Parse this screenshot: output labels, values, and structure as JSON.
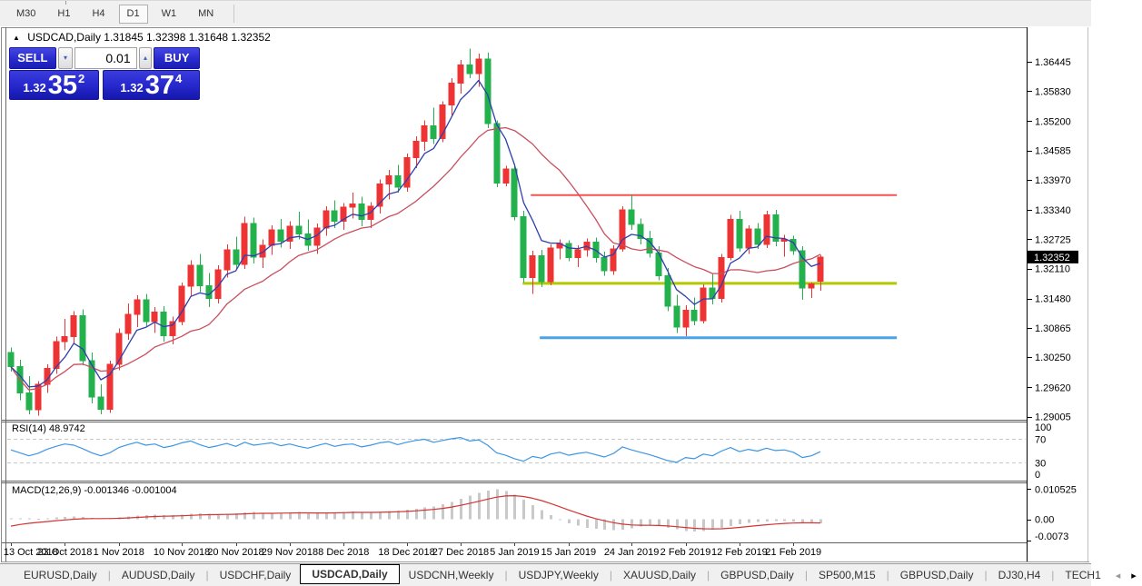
{
  "toolbar": {
    "periods": [
      "M30",
      "H1",
      "H4",
      "D1",
      "W1",
      "MN"
    ],
    "active_period": "D1"
  },
  "window": {
    "title_symbol": "USDCAD,Daily",
    "title_ohlc": "1.31845 1.32398 1.31648 1.32352",
    "collapse_icon": "▲"
  },
  "trade_panel": {
    "sell_label": "SELL",
    "buy_label": "BUY",
    "volume": "0.01",
    "decrease_icon": "▾",
    "increase_icon": "▴",
    "sell_price_prefix": "1.32",
    "sell_price_big": "35",
    "sell_price_sup": "2",
    "buy_price_prefix": "1.32",
    "buy_price_big": "37",
    "buy_price_sup": "4"
  },
  "price_axis": {
    "ticks": [
      "1.36445",
      "1.35830",
      "1.35200",
      "1.34585",
      "1.33970",
      "1.33340",
      "1.32725",
      "1.32110",
      "1.31480",
      "1.30865",
      "1.30250",
      "1.29620",
      "1.29005"
    ],
    "current": "1.32352"
  },
  "indicators": {
    "rsi_label": "RSI(14) 48.9742",
    "rsi_levels": [
      "100",
      "70",
      "30",
      "0"
    ],
    "macd_label": "MACD(12,26,9) -0.001346 -0.001004",
    "macd_ticks": [
      "0.010525",
      "0.00",
      "-0.0073"
    ]
  },
  "tabs": {
    "items": [
      "EURUSD,Daily",
      "AUDUSD,Daily",
      "USDCHF,Daily",
      "USDCAD,Daily",
      "USDCNH,Weekly",
      "USDJPY,Weekly",
      "XAUUSD,Daily",
      "GBPUSD,Daily",
      "SP500,M15",
      "GBPUSD,Daily",
      "DJ30,H4",
      "TECH1"
    ],
    "active_index": 3,
    "scroll_left": "◂",
    "scroll_right": "▸"
  },
  "colors": {
    "bull": "#ed3333",
    "bear": "#22b14c",
    "ma_fast": "#2e3fae",
    "ma_slow": "#c94f60",
    "rsi_line": "#3c96e6",
    "rsi_level_dash": "#c9c9c9",
    "macd_bar": "#c9c9c9",
    "macd_signal": "#d43434",
    "price_tag_bg": "#000000",
    "price_tag_text": "#ffffff",
    "panel_blue": "#2a2cd0"
  },
  "chart_data": {
    "type": "candlestick",
    "title": "USDCAD,Daily",
    "x_labels": [
      "13 Oct 2018",
      "23 Oct 2018",
      "1 Nov 2018",
      "10 Nov 2018",
      "20 Nov 2018",
      "29 Nov 2018",
      "8 Dec 2018",
      "18 Dec 2018",
      "27 Dec 2018",
      "5 Jan 2019",
      "15 Jan 2019",
      "24 Jan 2019",
      "2 Feb 2019",
      "12 Feb 2019",
      "21 Feb 2019"
    ],
    "x_label_indices": [
      0,
      6,
      12,
      19,
      25,
      31,
      37,
      44,
      50,
      56,
      62,
      69,
      75,
      81,
      87
    ],
    "price_range": [
      1.2894,
      1.3715
    ],
    "ma_fast_period": 5,
    "ma_slow_period": 14,
    "candles": [
      [
        1.3035,
        1.3045,
        1.2995,
        1.3005
      ],
      [
        1.3005,
        1.302,
        1.2935,
        1.295
      ],
      [
        1.295,
        1.2985,
        1.2905,
        1.2915
      ],
      [
        1.2915,
        1.2975,
        1.2903,
        1.2968
      ],
      [
        1.2968,
        1.301,
        1.295,
        1.3002
      ],
      [
        1.3002,
        1.3068,
        1.299,
        1.3058
      ],
      [
        1.3058,
        1.3105,
        1.304,
        1.3068
      ],
      [
        1.3068,
        1.3122,
        1.3052,
        1.3112
      ],
      [
        1.3112,
        1.3125,
        1.3008,
        1.3018
      ],
      [
        1.3018,
        1.3035,
        1.2928,
        1.2942
      ],
      [
        1.2942,
        1.2968,
        1.2905,
        1.2916
      ],
      [
        1.2916,
        1.3018,
        1.2908,
        1.301
      ],
      [
        1.301,
        1.3085,
        1.2998,
        1.3075
      ],
      [
        1.3075,
        1.3138,
        1.3062,
        1.3115
      ],
      [
        1.3115,
        1.3155,
        1.3088,
        1.3145
      ],
      [
        1.3145,
        1.3158,
        1.309,
        1.31
      ],
      [
        1.31,
        1.313,
        1.3076,
        1.312
      ],
      [
        1.312,
        1.3132,
        1.3058,
        1.307
      ],
      [
        1.307,
        1.311,
        1.3052,
        1.31
      ],
      [
        1.31,
        1.3182,
        1.3092,
        1.3174
      ],
      [
        1.3174,
        1.3228,
        1.3152,
        1.3218
      ],
      [
        1.3218,
        1.3242,
        1.3162,
        1.3175
      ],
      [
        1.3175,
        1.3202,
        1.313,
        1.3148
      ],
      [
        1.3148,
        1.3218,
        1.3138,
        1.3208
      ],
      [
        1.3208,
        1.3262,
        1.3192,
        1.325
      ],
      [
        1.325,
        1.3278,
        1.3208,
        1.322
      ],
      [
        1.322,
        1.332,
        1.321,
        1.3305
      ],
      [
        1.3305,
        1.3318,
        1.3222,
        1.3235
      ],
      [
        1.3235,
        1.3272,
        1.3212,
        1.326
      ],
      [
        1.326,
        1.3302,
        1.324,
        1.3292
      ],
      [
        1.3292,
        1.3315,
        1.3255,
        1.3268
      ],
      [
        1.3268,
        1.331,
        1.3252,
        1.33
      ],
      [
        1.33,
        1.333,
        1.3272,
        1.3284
      ],
      [
        1.3284,
        1.3314,
        1.3248,
        1.326
      ],
      [
        1.326,
        1.3305,
        1.3242,
        1.3296
      ],
      [
        1.3296,
        1.3342,
        1.328,
        1.3332
      ],
      [
        1.3332,
        1.3354,
        1.3296,
        1.331
      ],
      [
        1.331,
        1.3348,
        1.3292,
        1.334
      ],
      [
        1.334,
        1.337,
        1.3316,
        1.3346
      ],
      [
        1.3346,
        1.3362,
        1.33,
        1.3314
      ],
      [
        1.3314,
        1.335,
        1.3296,
        1.3342
      ],
      [
        1.3342,
        1.3398,
        1.3326,
        1.3388
      ],
      [
        1.3388,
        1.3418,
        1.3356,
        1.3405
      ],
      [
        1.3405,
        1.3428,
        1.337,
        1.3382
      ],
      [
        1.3382,
        1.3452,
        1.3372,
        1.3444
      ],
      [
        1.3444,
        1.3488,
        1.3422,
        1.3478
      ],
      [
        1.3478,
        1.3522,
        1.3458,
        1.351
      ],
      [
        1.351,
        1.3548,
        1.3472,
        1.3484
      ],
      [
        1.3484,
        1.3562,
        1.3476,
        1.3554
      ],
      [
        1.3554,
        1.361,
        1.3532,
        1.36
      ],
      [
        1.36,
        1.3648,
        1.3578,
        1.3638
      ],
      [
        1.3638,
        1.3672,
        1.361,
        1.362
      ],
      [
        1.362,
        1.3662,
        1.3592,
        1.365
      ],
      [
        1.365,
        1.3664,
        1.3505,
        1.3515
      ],
      [
        1.3515,
        1.3522,
        1.3382,
        1.339
      ],
      [
        1.339,
        1.3426,
        1.3384,
        1.342
      ],
      [
        1.342,
        1.343,
        1.3312,
        1.332
      ],
      [
        1.332,
        1.3332,
        1.3182,
        1.3192
      ],
      [
        1.3192,
        1.3248,
        1.3158,
        1.3238
      ],
      [
        1.3238,
        1.325,
        1.3172,
        1.3184
      ],
      [
        1.3184,
        1.3262,
        1.3176,
        1.3254
      ],
      [
        1.3254,
        1.3272,
        1.323,
        1.3264
      ],
      [
        1.3264,
        1.327,
        1.3226,
        1.3234
      ],
      [
        1.3234,
        1.326,
        1.3214,
        1.325
      ],
      [
        1.325,
        1.3274,
        1.3236,
        1.3266
      ],
      [
        1.3266,
        1.3276,
        1.3224,
        1.3234
      ],
      [
        1.3234,
        1.3246,
        1.3196,
        1.3206
      ],
      [
        1.3206,
        1.326,
        1.3198,
        1.3252
      ],
      [
        1.3252,
        1.3342,
        1.3246,
        1.3334
      ],
      [
        1.3334,
        1.3366,
        1.3292,
        1.3304
      ],
      [
        1.3304,
        1.3316,
        1.3262,
        1.3274
      ],
      [
        1.3274,
        1.329,
        1.3234,
        1.3244
      ],
      [
        1.3244,
        1.3258,
        1.3186,
        1.3196
      ],
      [
        1.3196,
        1.3212,
        1.3122,
        1.3132
      ],
      [
        1.3132,
        1.3156,
        1.3076,
        1.3088
      ],
      [
        1.3088,
        1.3134,
        1.3069,
        1.3124
      ],
      [
        1.3124,
        1.315,
        1.3092,
        1.3102
      ],
      [
        1.3102,
        1.3178,
        1.3096,
        1.317
      ],
      [
        1.317,
        1.3202,
        1.3136,
        1.3148
      ],
      [
        1.3148,
        1.3242,
        1.314,
        1.3234
      ],
      [
        1.3234,
        1.3324,
        1.3228,
        1.3314
      ],
      [
        1.3314,
        1.3332,
        1.3246,
        1.3254
      ],
      [
        1.3254,
        1.3302,
        1.3242,
        1.3294
      ],
      [
        1.3294,
        1.3306,
        1.3252,
        1.3262
      ],
      [
        1.3262,
        1.3332,
        1.3254,
        1.3324
      ],
      [
        1.3324,
        1.3334,
        1.3258,
        1.3268
      ],
      [
        1.3268,
        1.3282,
        1.3236,
        1.3272
      ],
      [
        1.3272,
        1.328,
        1.324,
        1.3248
      ],
      [
        1.3248,
        1.3258,
        1.3145,
        1.317
      ],
      [
        1.317,
        1.3182,
        1.3149,
        1.3179
      ],
      [
        1.31845,
        1.32398,
        1.31648,
        1.32352
      ]
    ],
    "hlines": [
      {
        "price": 1.3365,
        "x1_index": 57.8,
        "x2_index": 98.5,
        "color": "#f75252",
        "width": 2
      },
      {
        "price": 1.318,
        "x1_index": 56.9,
        "x2_index": 98.5,
        "color": "#b2c800",
        "width": 3
      },
      {
        "price": 1.3066,
        "x1_index": 58.8,
        "x2_index": 98.5,
        "color": "#4aa3e8",
        "width": 3
      }
    ],
    "rsi": {
      "range": [
        0,
        100
      ],
      "levels": [
        70,
        30
      ],
      "values": [
        52,
        47,
        42,
        46,
        53,
        58,
        62,
        60,
        54,
        47,
        42,
        47,
        56,
        61,
        65,
        60,
        62,
        56,
        59,
        64,
        67,
        61,
        56,
        59,
        63,
        58,
        65,
        60,
        62,
        64,
        59,
        62,
        58,
        55,
        59,
        63,
        58,
        61,
        62,
        57,
        60,
        64,
        66,
        61,
        65,
        68,
        70,
        65,
        68,
        71,
        73,
        67,
        69,
        60,
        47,
        43,
        37,
        33,
        41,
        38,
        45,
        48,
        43,
        46,
        48,
        44,
        40,
        46,
        57,
        52,
        48,
        44,
        39,
        34,
        31,
        39,
        37,
        45,
        42,
        50,
        56,
        49,
        53,
        50,
        55,
        51,
        52,
        48,
        39,
        42,
        49
      ]
    },
    "macd": {
      "range": [
        -0.008,
        0.0125
      ],
      "signal_period": 9,
      "signal_seed": -0.003,
      "values": [
        0.0003,
        0.0004,
        0.0003,
        0.0002,
        0.0004,
        0.0007,
        0.0009,
        0.001,
        0.0008,
        0.0005,
        0.0003,
        0.0004,
        0.0007,
        0.001,
        0.0013,
        0.0015,
        0.0016,
        0.0015,
        0.0014,
        0.0016,
        0.0019,
        0.0021,
        0.002,
        0.0018,
        0.0019,
        0.0021,
        0.0024,
        0.0025,
        0.0023,
        0.0022,
        0.0023,
        0.0024,
        0.0025,
        0.0023,
        0.0021,
        0.0022,
        0.0024,
        0.0026,
        0.0027,
        0.0025,
        0.0024,
        0.0026,
        0.0029,
        0.003,
        0.0033,
        0.0037,
        0.0042,
        0.0045,
        0.0052,
        0.0061,
        0.0072,
        0.0082,
        0.0092,
        0.01,
        0.0105,
        0.0098,
        0.0085,
        0.0068,
        0.005,
        0.0032,
        0.0015,
        0.0,
        -0.0013,
        -0.0022,
        -0.0029,
        -0.0033,
        -0.0036,
        -0.0038,
        -0.0036,
        -0.0031,
        -0.0025,
        -0.0022,
        -0.0024,
        -0.0029,
        -0.0035,
        -0.004,
        -0.0042,
        -0.004,
        -0.0036,
        -0.003,
        -0.0023,
        -0.0017,
        -0.0012,
        -0.0009,
        -0.0007,
        -0.0006,
        -0.0006,
        -0.0008,
        -0.001,
        -0.0012,
        -0.001346
      ]
    }
  }
}
